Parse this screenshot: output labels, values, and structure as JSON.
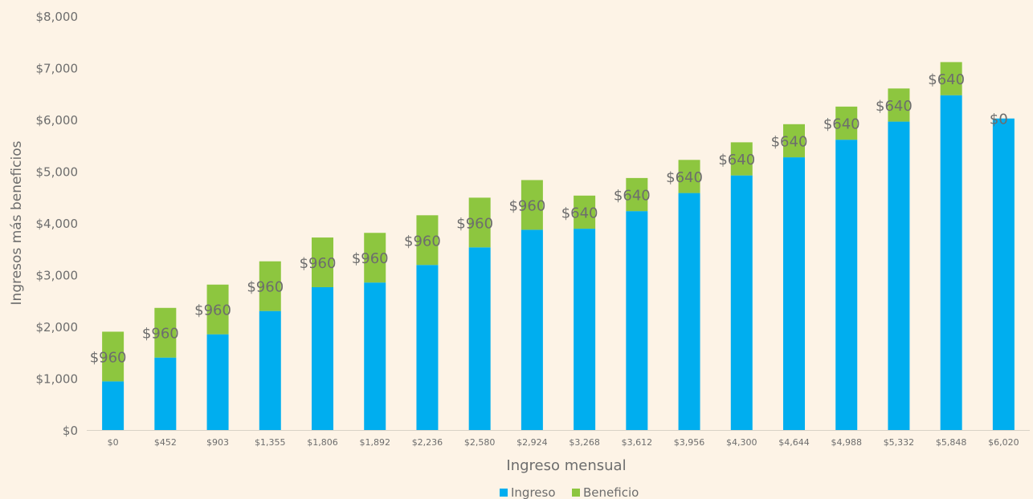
{
  "chart_data": {
    "type": "bar",
    "stacked": true,
    "title": "",
    "xlabel": "Ingreso mensual",
    "ylabel": "Ingresos más beneficios",
    "ylim": [
      0,
      8000
    ],
    "yticks": [
      "$0",
      "$1,000",
      "$2,000",
      "$3,000",
      "$4,000",
      "$5,000",
      "$6,000",
      "$7,000",
      "$8,000"
    ],
    "categories": [
      "$0",
      "$452",
      "$903",
      "$1,355",
      "$1,806",
      "$1,892",
      "$2,236",
      "$2,580",
      "$2,924",
      "$3,268",
      "$3,612",
      "$3,956",
      "$4,300",
      "$4,644",
      "$4,988",
      "$5,332",
      "$5,848",
      "$6,020"
    ],
    "series": [
      {
        "name": "Ingreso",
        "color": "#00aeef",
        "values": [
          940,
          1400,
          1850,
          2300,
          2760,
          2850,
          3190,
          3530,
          3870,
          3890,
          4230,
          4580,
          4920,
          5270,
          5610,
          5960,
          6470,
          6020
        ]
      },
      {
        "name": "Beneficio",
        "color": "#8dc63f",
        "values": [
          960,
          960,
          960,
          960,
          960,
          960,
          960,
          960,
          960,
          640,
          640,
          640,
          640,
          640,
          640,
          640,
          640,
          0
        ]
      }
    ],
    "data_labels": [
      "$960",
      "$960",
      "$960",
      "$960",
      "$960",
      "$960",
      "$960",
      "$960",
      "$960",
      "$640",
      "$640",
      "$640",
      "$640",
      "$640",
      "$640",
      "$640",
      "$640",
      "$0"
    ],
    "legend": {
      "position": "bottom",
      "items": [
        "Ingreso",
        "Beneficio"
      ]
    },
    "grid": false
  },
  "colors": {
    "background": "#fdf3e6",
    "ingreso": "#00aeef",
    "beneficio": "#8dc63f",
    "text": "#6d6d6d"
  }
}
